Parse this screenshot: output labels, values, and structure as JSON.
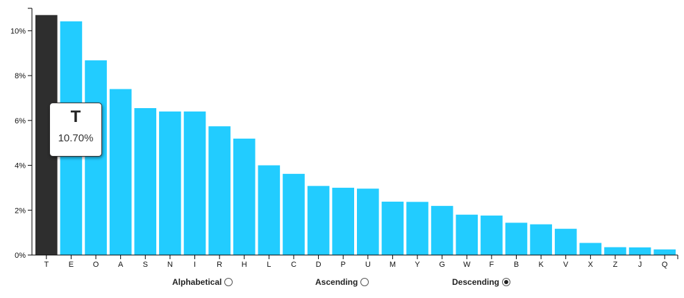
{
  "chart_data": {
    "type": "bar",
    "title": "",
    "xlabel": "",
    "ylabel": "",
    "ylim": [
      0,
      11
    ],
    "yticks": [
      0,
      2,
      4,
      6,
      8,
      10
    ],
    "ytick_labels": [
      "0%",
      "2%",
      "4%",
      "6%",
      "8%",
      "10%"
    ],
    "categories": [
      "T",
      "E",
      "O",
      "A",
      "S",
      "N",
      "I",
      "R",
      "H",
      "L",
      "C",
      "D",
      "P",
      "U",
      "M",
      "Y",
      "G",
      "W",
      "F",
      "B",
      "K",
      "V",
      "X",
      "Z",
      "J",
      "Q"
    ],
    "values": [
      10.7,
      10.42,
      8.68,
      7.4,
      6.55,
      6.4,
      6.4,
      5.74,
      5.19,
      4.0,
      3.62,
      3.08,
      3.0,
      2.96,
      2.38,
      2.37,
      2.19,
      1.8,
      1.76,
      1.44,
      1.37,
      1.17,
      0.54,
      0.35,
      0.34,
      0.25
    ],
    "highlighted": "T",
    "colors": {
      "bar": "#22ccff",
      "highlight": "#2e2e2e",
      "axis": "#000000"
    }
  },
  "tooltip": {
    "letter": "T",
    "value": "10.70%"
  },
  "sort_options": [
    {
      "label": "Alphabetical",
      "checked": false
    },
    {
      "label": "Ascending",
      "checked": false
    },
    {
      "label": "Descending",
      "checked": true
    }
  ]
}
